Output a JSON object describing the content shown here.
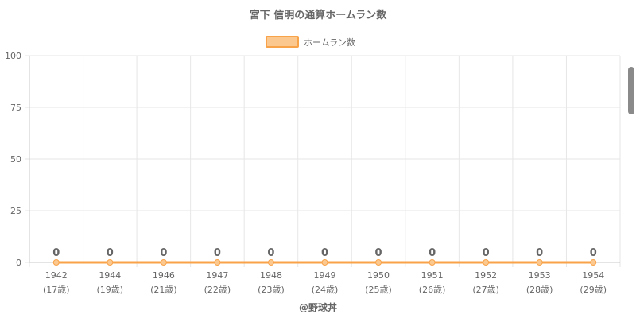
{
  "chart_data": {
    "type": "line",
    "title": "宮下 信明の通算ホームラン数",
    "series": [
      {
        "name": "ホームラン数",
        "values": [
          0,
          0,
          0,
          0,
          0,
          0,
          0,
          0,
          0,
          0,
          0
        ],
        "color": "#f8a34a",
        "fill": "#fbc98f"
      }
    ],
    "categories": [
      "1942",
      "1944",
      "1946",
      "1947",
      "1948",
      "1949",
      "1950",
      "1951",
      "1952",
      "1953",
      "1954"
    ],
    "ages": [
      "(17歳)",
      "(19歳)",
      "(21歳)",
      "(22歳)",
      "(23歳)",
      "(24歳)",
      "(25歳)",
      "(26歳)",
      "(27歳)",
      "(28歳)",
      "(29歳)"
    ],
    "yticks": [
      0,
      25,
      50,
      75,
      100
    ],
    "ylim": [
      0,
      100
    ],
    "grid": true,
    "legend": "top-center",
    "footer": "@野球丼"
  }
}
